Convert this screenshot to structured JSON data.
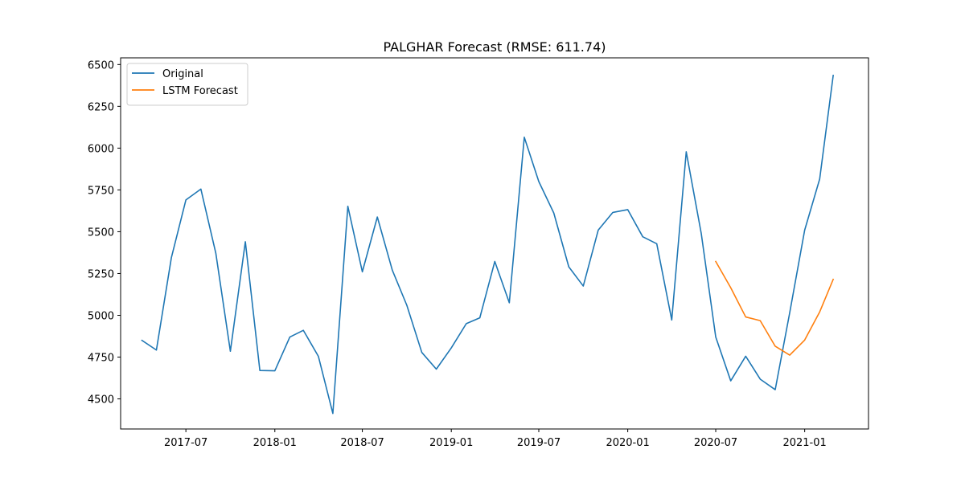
{
  "chart_data": {
    "type": "line",
    "title": "PALGHAR Forecast (RMSE: 611.74)",
    "xlabel": "",
    "ylabel": "",
    "xlim": [
      "2017-02-16",
      "2021-05-13"
    ],
    "ylim": [
      4320,
      6540
    ],
    "x_ticks": [
      "2017-07",
      "2018-01",
      "2018-07",
      "2019-01",
      "2019-07",
      "2020-01",
      "2020-07",
      "2021-01"
    ],
    "y_ticks": [
      4500,
      4750,
      5000,
      5250,
      5500,
      5750,
      6000,
      6250,
      6500
    ],
    "grid": false,
    "legend_position": "top-left",
    "series": [
      {
        "name": "Original",
        "color": "#1f77b4",
        "points": [
          [
            "2017-04",
            4850
          ],
          [
            "2017-05",
            4792
          ],
          [
            "2017-06",
            5345
          ],
          [
            "2017-07",
            5690
          ],
          [
            "2017-08",
            5755
          ],
          [
            "2017-09",
            5370
          ],
          [
            "2017-10",
            4785
          ],
          [
            "2017-11",
            5440
          ],
          [
            "2017-12",
            4670
          ],
          [
            "2018-01",
            4668
          ],
          [
            "2018-02",
            4870
          ],
          [
            "2018-03",
            4910
          ],
          [
            "2018-04",
            4755
          ],
          [
            "2018-05",
            4413
          ],
          [
            "2018-06",
            5652
          ],
          [
            "2018-07",
            5260
          ],
          [
            "2018-08",
            5588
          ],
          [
            "2018-09",
            5270
          ],
          [
            "2018-10",
            5060
          ],
          [
            "2018-11",
            4778
          ],
          [
            "2018-12",
            4678
          ],
          [
            "2019-01",
            4805
          ],
          [
            "2019-02",
            4950
          ],
          [
            "2019-03",
            4985
          ],
          [
            "2019-04",
            5322
          ],
          [
            "2019-05",
            5075
          ],
          [
            "2019-06",
            6065
          ],
          [
            "2019-07",
            5800
          ],
          [
            "2019-08",
            5612
          ],
          [
            "2019-09",
            5290
          ],
          [
            "2019-10",
            5175
          ],
          [
            "2019-11",
            5510
          ],
          [
            "2019-12",
            5615
          ],
          [
            "2020-01",
            5632
          ],
          [
            "2020-02",
            5470
          ],
          [
            "2020-03",
            5428
          ],
          [
            "2020-04",
            4972
          ],
          [
            "2020-05",
            5978
          ],
          [
            "2020-06",
            5490
          ],
          [
            "2020-07",
            4870
          ],
          [
            "2020-08",
            4608
          ],
          [
            "2020-09",
            4755
          ],
          [
            "2020-10",
            4618
          ],
          [
            "2020-11",
            4555
          ],
          [
            "2020-12",
            5015
          ],
          [
            "2021-01",
            5510
          ],
          [
            "2021-02",
            5815
          ],
          [
            "2021-03",
            6435
          ]
        ]
      },
      {
        "name": "LSTM Forecast",
        "color": "#ff7f0e",
        "points": [
          [
            "2020-07",
            5322
          ],
          [
            "2020-08",
            5165
          ],
          [
            "2020-09",
            4990
          ],
          [
            "2020-10",
            4968
          ],
          [
            "2020-11",
            4815
          ],
          [
            "2020-12",
            4762
          ],
          [
            "2021-01",
            4852
          ],
          [
            "2021-02",
            5020
          ],
          [
            "2021-03",
            5215
          ]
        ]
      }
    ]
  }
}
